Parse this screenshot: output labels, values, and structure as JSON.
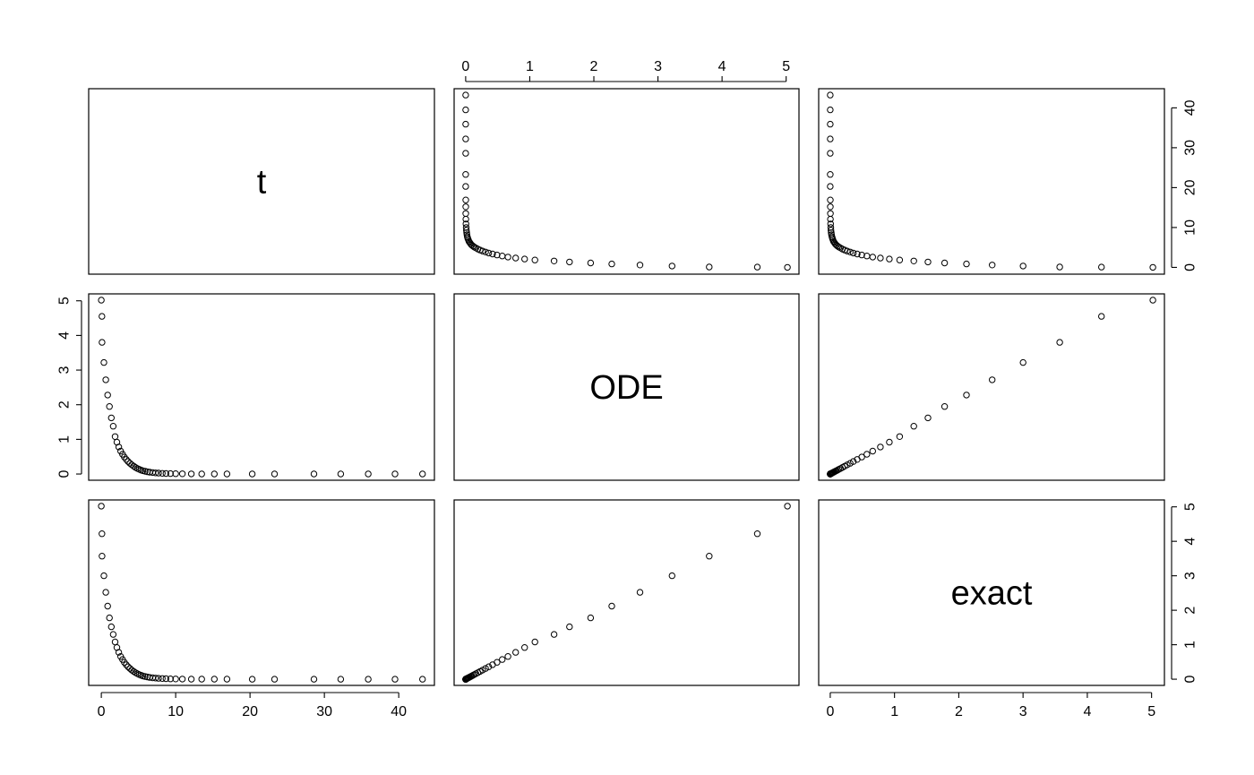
{
  "chart_data": {
    "type": "scatter",
    "variables": [
      "t",
      "ODE",
      "exact"
    ],
    "ticks": {
      "t": [
        0,
        10,
        20,
        30,
        40
      ],
      "ODE": [
        0,
        1,
        2,
        3,
        4,
        5
      ],
      "exact": [
        0,
        1,
        2,
        3,
        4,
        5
      ]
    },
    "ranges": {
      "t": [
        -1.7,
        44.8
      ],
      "ODE": [
        -0.18,
        5.2
      ],
      "exact": [
        -0.18,
        5.2
      ]
    },
    "data": {
      "t": [
        43.2,
        39.5,
        35.9,
        32.2,
        28.6,
        23.3,
        20.3,
        16.9,
        15.2,
        13.5,
        12.1,
        10.9,
        10.0,
        9.3,
        8.7,
        8.2,
        7.7,
        7.3,
        6.9,
        6.5,
        6.2,
        5.9,
        5.6,
        5.35,
        5.1,
        4.85,
        4.6,
        4.35,
        4.1,
        3.85,
        3.6,
        3.35,
        3.1,
        2.85,
        2.6,
        2.35,
        2.1,
        1.85,
        1.6,
        1.35,
        1.1,
        0.85,
        0.6,
        0.35,
        0.1
      ],
      "ODE": [
        0.0,
        0.0,
        0.0,
        0.0,
        0.0,
        0.0,
        0.0,
        0.001,
        0.001,
        0.002,
        0.003,
        0.005,
        0.008,
        0.011,
        0.015,
        0.02,
        0.026,
        0.033,
        0.042,
        0.052,
        0.064,
        0.078,
        0.094,
        0.113,
        0.135,
        0.16,
        0.19,
        0.225,
        0.265,
        0.31,
        0.36,
        0.42,
        0.49,
        0.57,
        0.66,
        0.78,
        0.92,
        1.08,
        1.38,
        1.62,
        1.95,
        2.28,
        2.72,
        3.22,
        3.8
      ],
      "exact": [
        0.0,
        0.0,
        0.0,
        0.0,
        0.0,
        0.0,
        0.0,
        0.001,
        0.001,
        0.002,
        0.003,
        0.005,
        0.008,
        0.011,
        0.015,
        0.02,
        0.026,
        0.033,
        0.042,
        0.052,
        0.064,
        0.078,
        0.094,
        0.113,
        0.135,
        0.16,
        0.19,
        0.225,
        0.265,
        0.31,
        0.36,
        0.42,
        0.49,
        0.57,
        0.66,
        0.78,
        0.92,
        1.08,
        1.3,
        1.52,
        1.78,
        2.12,
        2.52,
        3.0,
        3.57
      ],
      "extra_top": {
        "t": [
          0.08,
          0.0
        ],
        "ODE": [
          4.55,
          5.02
        ],
        "exact": [
          4.22,
          5.02
        ]
      }
    }
  }
}
